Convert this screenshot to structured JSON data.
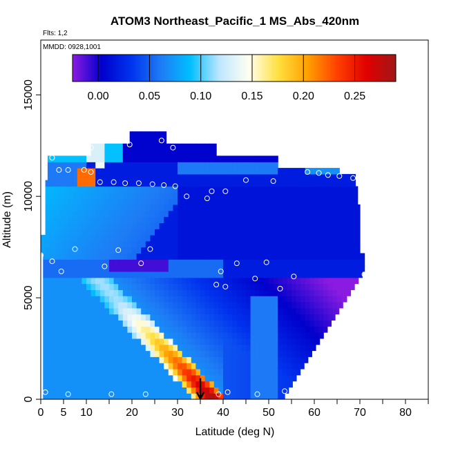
{
  "chart_data": {
    "type": "heatmap",
    "title": "ATOM3 Northeast_Pacific_1 MS_Abs_420nm",
    "flights_note": "Flts: 1,2",
    "dates_note": "MMDD: 0928,1001",
    "xlabel": "Latitude (deg N)",
    "ylabel": "Altitude (m)",
    "xlim": [
      0,
      85
    ],
    "ylim": [
      0,
      17700
    ],
    "x_ticks": [
      0,
      5,
      10,
      20,
      30,
      40,
      50,
      60,
      70,
      80
    ],
    "y_ticks": [
      0,
      5000,
      10000,
      15000
    ],
    "grid": false,
    "colorbar": {
      "placement": "top",
      "range": [
        -0.025,
        0.29
      ],
      "ticks": [
        0.0,
        0.05,
        0.1,
        0.15,
        0.2,
        0.25
      ],
      "tick_labels": [
        "0.00",
        "0.05",
        "0.10",
        "0.15",
        "0.20",
        "0.25"
      ],
      "colors": [
        "#8B1BE0",
        "#0000CC",
        "#0033EE",
        "#1E7BF5",
        "#00BFFF",
        "#BFE6FF",
        "#FFFFF0",
        "#FFE040",
        "#FFA000",
        "#FF4000",
        "#E00000",
        "#A01818"
      ]
    },
    "profile_points": [
      {
        "lat": 2.5,
        "alt": 11900
      },
      {
        "lat": 4.0,
        "alt": 11300
      },
      {
        "lat": 6.0,
        "alt": 11300
      },
      {
        "lat": 9.5,
        "alt": 11300
      },
      {
        "lat": 11.0,
        "alt": 11200
      },
      {
        "lat": 11.0,
        "alt": 12400
      },
      {
        "lat": 13.0,
        "alt": 10700
      },
      {
        "lat": 16.0,
        "alt": 10700
      },
      {
        "lat": 18.5,
        "alt": 10650
      },
      {
        "lat": 21.5,
        "alt": 10650
      },
      {
        "lat": 24.5,
        "alt": 10600
      },
      {
        "lat": 27.0,
        "alt": 10550
      },
      {
        "lat": 29.5,
        "alt": 10500
      },
      {
        "lat": 32.0,
        "alt": 10000
      },
      {
        "lat": 36.5,
        "alt": 9900
      },
      {
        "lat": 37.5,
        "alt": 10250
      },
      {
        "lat": 40.5,
        "alt": 10250
      },
      {
        "lat": 45.0,
        "alt": 10800
      },
      {
        "lat": 51.0,
        "alt": 10750
      },
      {
        "lat": 58.5,
        "alt": 11200
      },
      {
        "lat": 61.0,
        "alt": 11150
      },
      {
        "lat": 63.0,
        "alt": 11050
      },
      {
        "lat": 65.5,
        "alt": 11000
      },
      {
        "lat": 68.5,
        "alt": 10900
      },
      {
        "lat": 19.5,
        "alt": 12550
      },
      {
        "lat": 26.5,
        "alt": 12750
      },
      {
        "lat": 29.0,
        "alt": 12400
      },
      {
        "lat": 0.0,
        "alt": 7100
      },
      {
        "lat": 2.5,
        "alt": 6800
      },
      {
        "lat": 4.5,
        "alt": 6300
      },
      {
        "lat": 7.5,
        "alt": 7400
      },
      {
        "lat": 14.0,
        "alt": 6550
      },
      {
        "lat": 17.0,
        "alt": 7350
      },
      {
        "lat": 22.0,
        "alt": 6700
      },
      {
        "lat": 24.0,
        "alt": 7400
      },
      {
        "lat": 39.5,
        "alt": 6300
      },
      {
        "lat": 38.5,
        "alt": 5650
      },
      {
        "lat": 40.5,
        "alt": 5550
      },
      {
        "lat": 43.0,
        "alt": 6700
      },
      {
        "lat": 47.0,
        "alt": 5950
      },
      {
        "lat": 49.5,
        "alt": 6750
      },
      {
        "lat": 52.5,
        "alt": 5450
      },
      {
        "lat": 55.5,
        "alt": 6050
      },
      {
        "lat": 71.0,
        "alt": 6150
      },
      {
        "lat": 1.0,
        "alt": 350
      },
      {
        "lat": 6.0,
        "alt": 250
      },
      {
        "lat": 15.5,
        "alt": 250
      },
      {
        "lat": 23.0,
        "alt": 250
      },
      {
        "lat": 39.0,
        "alt": 250
      },
      {
        "lat": 41.0,
        "alt": 350
      },
      {
        "lat": 47.5,
        "alt": 250
      },
      {
        "lat": 53.5,
        "alt": 400
      }
    ],
    "marker": {
      "type": "arrow-down",
      "lat": 35.0,
      "alt": 700
    }
  }
}
